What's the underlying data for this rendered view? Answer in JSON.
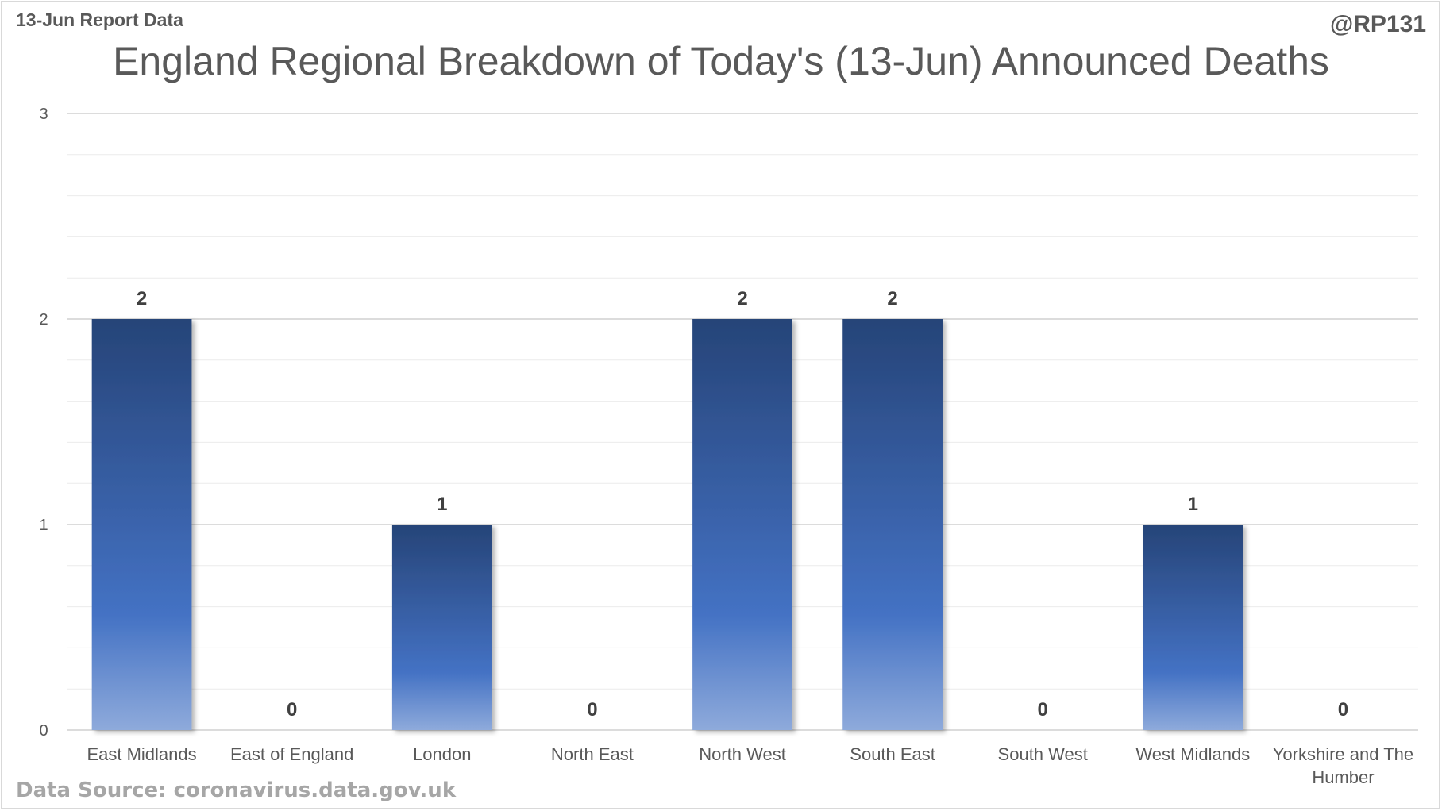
{
  "header": {
    "left_note": "13-Jun Report Data",
    "right_handle": "@RP131"
  },
  "footer": {
    "source": "Data Source: coronavirus.data.gov.uk"
  },
  "colors": {
    "bar_top": "#264478",
    "bar_mid": "#4472c4",
    "bar_bottom": "#8eaadb",
    "gridline": "#d9d9d9",
    "text": "#595959"
  },
  "chart_data": {
    "type": "bar",
    "title": "England Regional Breakdown of Today's (13-Jun) Announced Deaths",
    "xlabel": "",
    "ylabel": "",
    "categories": [
      [
        "East Midlands"
      ],
      [
        "East of England"
      ],
      [
        "London"
      ],
      [
        "North East"
      ],
      [
        "North West"
      ],
      [
        "South East"
      ],
      [
        "South West"
      ],
      [
        "West Midlands"
      ],
      [
        "Yorkshire and The",
        "Humber"
      ]
    ],
    "values": [
      2,
      0,
      1,
      0,
      2,
      2,
      0,
      1,
      0
    ],
    "ylim": [
      0,
      3
    ],
    "yticks": [
      0,
      1,
      2,
      3
    ],
    "minor_gridlines_per_unit": 5,
    "grid": true,
    "legend": "none",
    "data_labels": true
  }
}
